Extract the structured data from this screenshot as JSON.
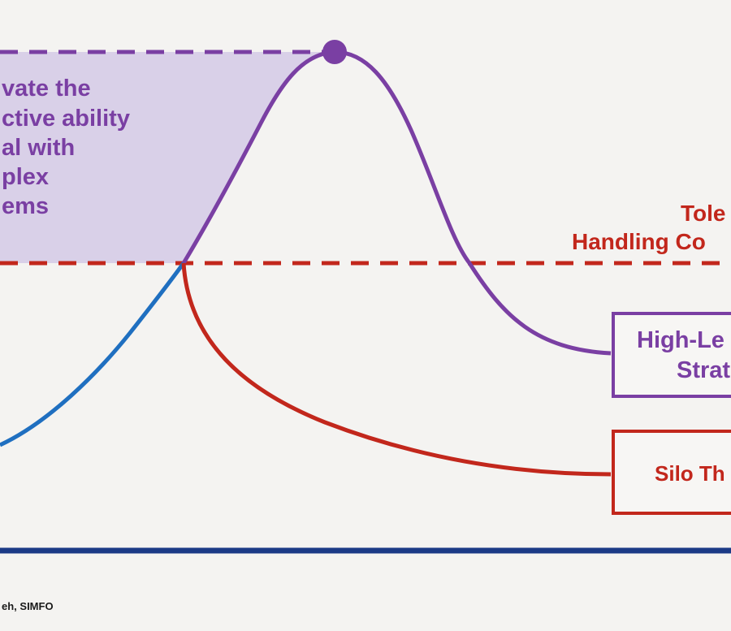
{
  "highlight_text": {
    "line1": "vate the",
    "line2": "ctive ability",
    "line3": "al with",
    "line4": "plex",
    "line5": "ems"
  },
  "threshold_label": {
    "line1": "Tole",
    "line2": "Handling  Co"
  },
  "boxes": {
    "high_level": {
      "line1": "High-Le",
      "line2": "Strat"
    },
    "silo": {
      "line1": "Silo Th"
    }
  },
  "credit": "eh, SIMFO",
  "colors": {
    "purple": "#7a3fa3",
    "highlight_fill": "#d9d0e8",
    "red": "#c2271c",
    "blue": "#1f6fc0",
    "baseline": "#1b3a86",
    "background": "#f4f3f1"
  }
}
